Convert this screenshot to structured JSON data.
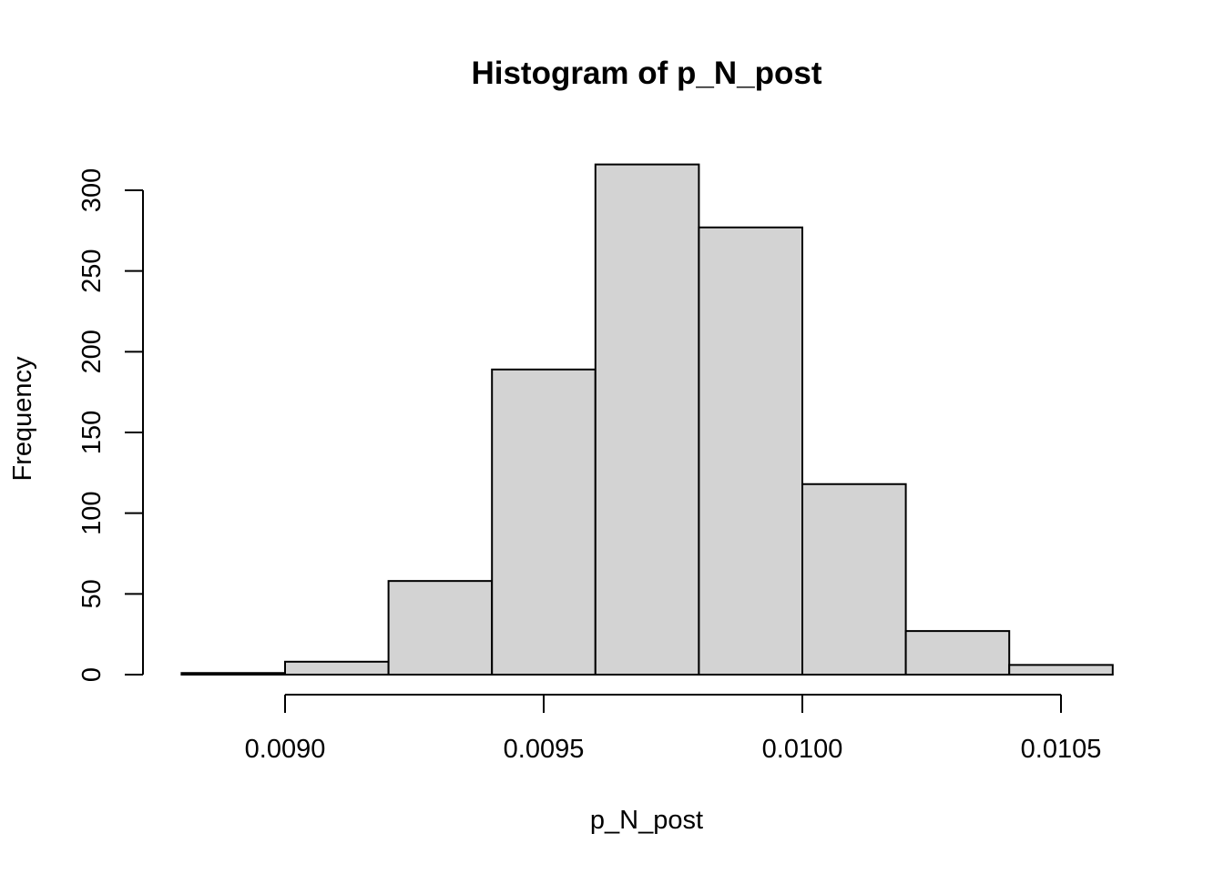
{
  "chart_data": {
    "type": "bar",
    "title": "Histogram of p_N_post",
    "xlabel": "p_N_post",
    "ylabel": "Frequency",
    "bin_edges": [
      0.0088,
      0.009,
      0.0092,
      0.0094,
      0.0096,
      0.0098,
      0.01,
      0.0102,
      0.0104,
      0.0106
    ],
    "values": [
      1,
      8,
      58,
      189,
      316,
      277,
      118,
      27,
      6
    ],
    "x_ticks": [
      0.009,
      0.0095,
      0.01,
      0.0105
    ],
    "x_tick_labels": [
      "0.0090",
      "0.0095",
      "0.0100",
      "0.0105"
    ],
    "y_ticks": [
      0,
      50,
      100,
      150,
      200,
      250,
      300
    ],
    "y_tick_labels": [
      "0",
      "50",
      "100",
      "150",
      "200",
      "250",
      "300"
    ],
    "xlim": [
      0.0088,
      0.0106
    ],
    "ylim": [
      0,
      316
    ],
    "grid": false,
    "bar_color": "#d3d3d3",
    "edge_color": "#000000"
  }
}
